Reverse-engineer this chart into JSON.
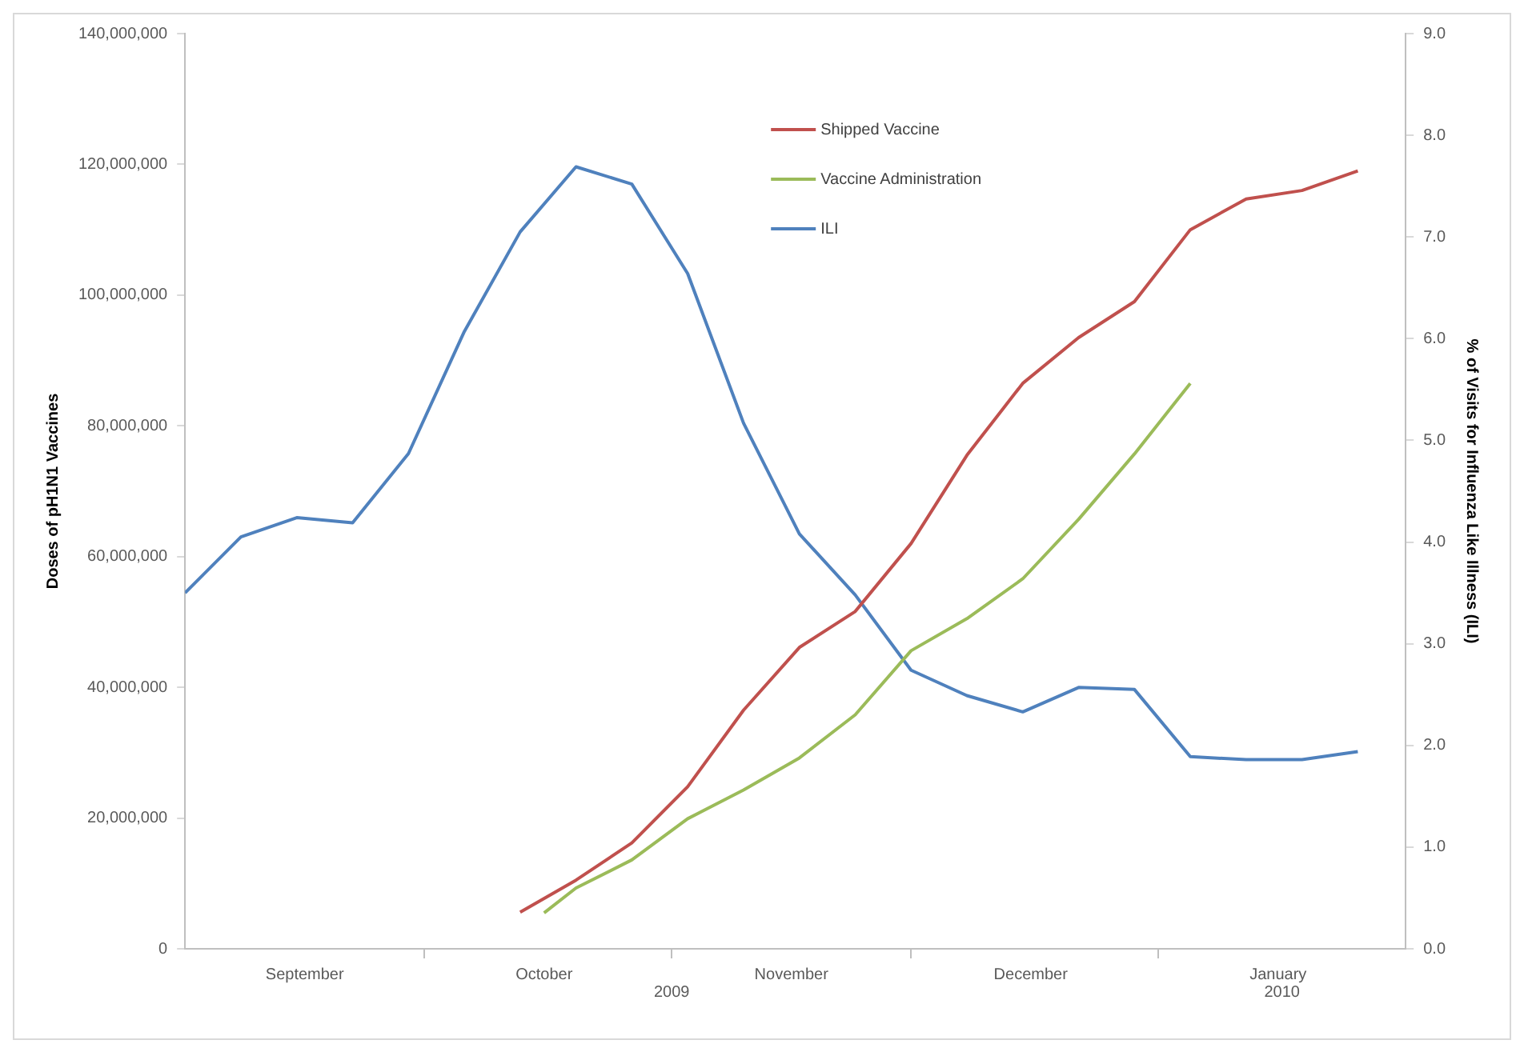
{
  "chart_data": {
    "type": "line",
    "ylabel": "Doses of pH1N1 Vaccines",
    "y2label": "% of Visits for Influenza Like Illness (ILI)",
    "x": [
      "2009-09-01",
      "2009-09-08",
      "2009-09-15",
      "2009-09-22",
      "2009-09-29",
      "2009-10-06",
      "2009-10-13",
      "2009-10-20",
      "2009-10-27",
      "2009-11-03",
      "2009-11-10",
      "2009-11-17",
      "2009-11-24",
      "2009-12-01",
      "2009-12-08",
      "2009-12-15",
      "2009-12-22",
      "2009-12-29",
      "2010-01-05",
      "2010-01-12",
      "2010-01-19",
      "2010-01-26"
    ],
    "series": [
      {
        "name": "Shipped Vaccine",
        "color": "#c0504d",
        "values": [
          null,
          null,
          null,
          null,
          null,
          null,
          5600000,
          10500000,
          16200000,
          24800000,
          36500000,
          46100000,
          51600000,
          62000000,
          75500000,
          86500000,
          93500000,
          99000000,
          110000000,
          114700000,
          116000000,
          119000000
        ]
      },
      {
        "name": "Vaccine Administration",
        "color": "#9bbb59",
        "x": [
          "2009-10-16",
          "2009-10-20",
          "2009-10-27",
          "2009-11-03",
          "2009-11-10",
          "2009-11-17",
          "2009-11-24",
          "2009-12-01",
          "2009-12-08",
          "2009-12-15",
          "2009-12-22",
          "2009-12-29",
          "2010-01-05"
        ],
        "values": [
          5500000,
          9300000,
          13600000,
          19900000,
          24300000,
          29200000,
          35800000,
          45600000,
          50500000,
          56600000,
          65700000,
          75700000,
          86500000
        ]
      },
      {
        "name": "ILI",
        "color": "#4f81bd",
        "axis": "y2",
        "values": [
          3.5,
          4.05,
          4.24,
          4.19,
          4.87,
          6.07,
          7.05,
          7.69,
          7.52,
          6.64,
          5.17,
          4.08,
          3.48,
          2.74,
          2.49,
          2.33,
          2.57,
          2.55,
          1.89,
          1.86,
          1.86,
          1.94
        ]
      }
    ],
    "xlim": [
      "2009-09-01",
      "2010-02-01"
    ],
    "xticks": [
      {
        "value": "2009-09-16",
        "label": "September"
      },
      {
        "value": "2009-10-01",
        "label": null
      },
      {
        "value": "2009-10-16",
        "label": "October"
      },
      {
        "value": "2009-11-01",
        "label": null
      },
      {
        "value": "2009-11-16",
        "label": "November"
      },
      {
        "value": "2009-12-01",
        "label": null
      },
      {
        "value": "2009-12-16",
        "label": "December"
      },
      {
        "value": "2010-01-01",
        "label": null
      },
      {
        "value": "2010-01-16",
        "label": "January"
      }
    ],
    "ylim": [
      0,
      140000000
    ],
    "yticks": [
      {
        "value": 0,
        "label": "0"
      },
      {
        "value": 20000000,
        "label": "20,000,000"
      },
      {
        "value": 40000000,
        "label": "40,000,000"
      },
      {
        "value": 60000000,
        "label": "60,000,000"
      },
      {
        "value": 80000000,
        "label": "80,000,000"
      },
      {
        "value": 100000000,
        "label": "100,000,000"
      },
      {
        "value": 120000000,
        "label": "120,000,000"
      },
      {
        "value": 140000000,
        "label": "140,000,000"
      }
    ],
    "y2lim": [
      0,
      9
    ],
    "y2ticks": [
      {
        "value": 0,
        "label": "0.0"
      },
      {
        "value": 1,
        "label": "1.0"
      },
      {
        "value": 2,
        "label": "2.0"
      },
      {
        "value": 3,
        "label": "3.0"
      },
      {
        "value": 4,
        "label": "4.0"
      },
      {
        "value": 5,
        "label": "5.0"
      },
      {
        "value": 6,
        "label": "6.0"
      },
      {
        "value": 7,
        "label": "7.0"
      },
      {
        "value": 8,
        "label": "8.0"
      },
      {
        "value": 9,
        "label": "9.0"
      }
    ],
    "annotations": [
      "2009",
      "2010"
    ],
    "legend": "top",
    "marker": "none",
    "line_style": "solid"
  }
}
